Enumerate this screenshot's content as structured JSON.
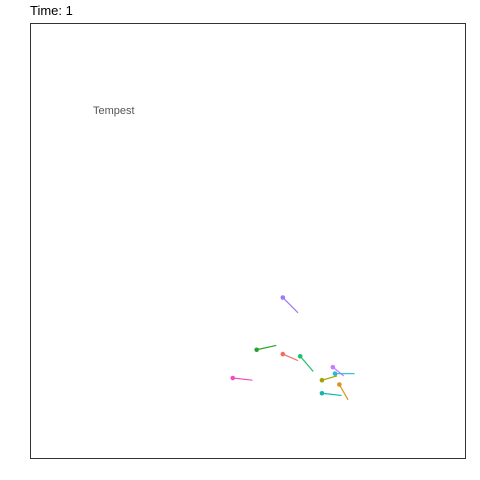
{
  "chart_data": {
    "type": "scatter",
    "title": "Time: 1",
    "annotation": "Tempest",
    "xlim": [
      0,
      100
    ],
    "ylim": [
      0,
      100
    ],
    "grid": false,
    "series": [
      {
        "color": "#9e79f5",
        "point": [
          58,
          37
        ],
        "tail": [
          61.5,
          33.5
        ]
      },
      {
        "color": "#2ca02c",
        "point": [
          52,
          25
        ],
        "tail": [
          56.5,
          26
        ]
      },
      {
        "color": "#f06f63",
        "point": [
          58,
          24
        ],
        "tail": [
          61.5,
          22.5
        ]
      },
      {
        "color": "#1fbf6a",
        "point": [
          62,
          23.5
        ],
        "tail": [
          65,
          20
        ]
      },
      {
        "color": "#ef4fc4",
        "point": [
          46.5,
          18.5
        ],
        "tail": [
          51,
          18
        ]
      },
      {
        "color": "#c77cff",
        "point": [
          69.5,
          21
        ],
        "tail": [
          72,
          19
        ]
      },
      {
        "color": "#26b8d9",
        "point": [
          70,
          19.5
        ],
        "tail": [
          74.5,
          19.5
        ]
      },
      {
        "color": "#a3a100",
        "point": [
          67,
          18
        ],
        "tail": [
          70.5,
          19
        ]
      },
      {
        "color": "#e0931c",
        "point": [
          71,
          17
        ],
        "tail": [
          73,
          13.5
        ]
      },
      {
        "color": "#13b3b3",
        "point": [
          67,
          15
        ],
        "tail": [
          71.5,
          14.5
        ]
      }
    ]
  }
}
